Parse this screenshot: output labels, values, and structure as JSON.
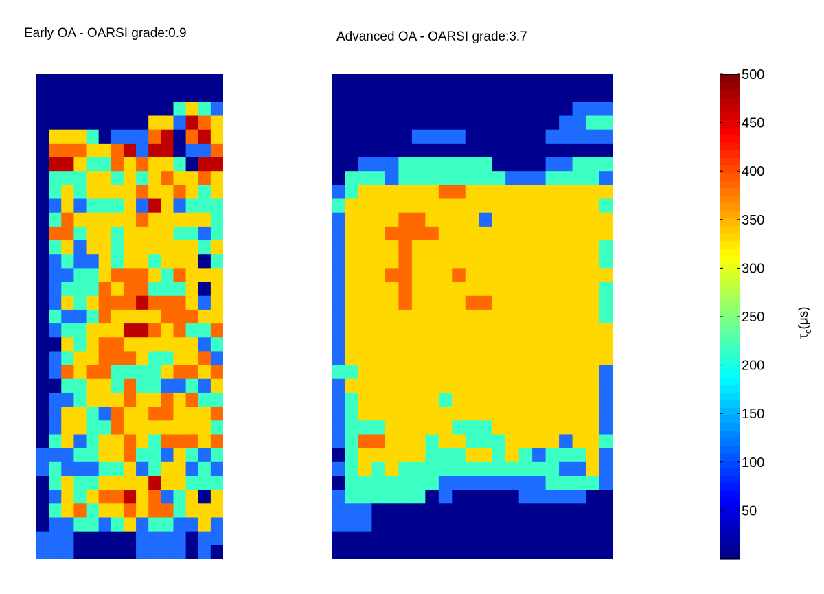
{
  "chart_data": [
    {
      "type": "heatmap",
      "title": "Early OA - OARSI grade:0.9",
      "rows": 35,
      "cols": 15,
      "value_units": "μs",
      "cells": [
        "000000000000000",
        "000000000000000",
        "000000000002321",
        "000000000331543",
        "033320111456453",
        "044433451556114",
        "055322434332055",
        "022233232343343",
        "023233334334323",
        "013122231531222",
        "024333334333332",
        "044233233332212",
        "023133233333323",
        "012113233233302",
        "011223444324333",
        "012224344222303",
        "013234445444313",
        "021124333344433",
        "012233355434224",
        "003234433333312",
        "012334443223341",
        "014344222234434",
        "002233242211213",
        "011233343343422",
        "013321433443334",
        "013322433333332",
        "023123343244434",
        "111223342213212",
        "121112231233121",
        "023223333533222",
        "013234453412303",
        "023423343442333",
        "011221231221131",
        "111000001111011",
        "111000001111010"
      ]
    },
    {
      "type": "heatmap",
      "title": "Advanced OA - OARSI grade:3.7",
      "rows": 35,
      "cols": 21,
      "value_units": "μs",
      "cells": [
        "000000000000000000000",
        "000000000000000000000",
        "000000000000000000111",
        "000000000000000001122",
        "000000111100000011111",
        "000000000000000000000",
        "001112222222000011222",
        "022212222222211122221",
        "123333334433333333333",
        "233333333333333333332",
        "133334433331333333333",
        "133344443333333333333",
        "133334333333333333332",
        "133334333333333333332",
        "133344333433333333333",
        "133334333333333333332",
        "133334333344333333332",
        "133333333333333333332",
        "133333333333333333333",
        "133333333333333333333",
        "133333333333333333333",
        "223333333333333333331",
        "133333333333333333331",
        "123333332333333333331",
        "123333333333333333331",
        "122233333222333333331",
        "124433323322233331332",
        "023333322233232122231",
        "123232222222222221131",
        "022222221111111122221",
        "122222201000001111100",
        "111000000000000000000",
        "111000000000000000000",
        "000000000000000000000",
        "000000000000000000000"
      ]
    },
    {
      "type": "colorbar",
      "ticks": [
        "50",
        "100",
        "150",
        "200",
        "250",
        "300",
        "350",
        "400",
        "450",
        "500"
      ],
      "range": [
        0,
        500
      ],
      "label_main": "τ",
      "label_sub": "c",
      "label_unit": "(μs)",
      "colormap": "jet"
    }
  ],
  "palette": [
    "#00008f",
    "#1e6bff",
    "#3cffc3",
    "#ffd800",
    "#ff6a00",
    "#bf0000"
  ]
}
